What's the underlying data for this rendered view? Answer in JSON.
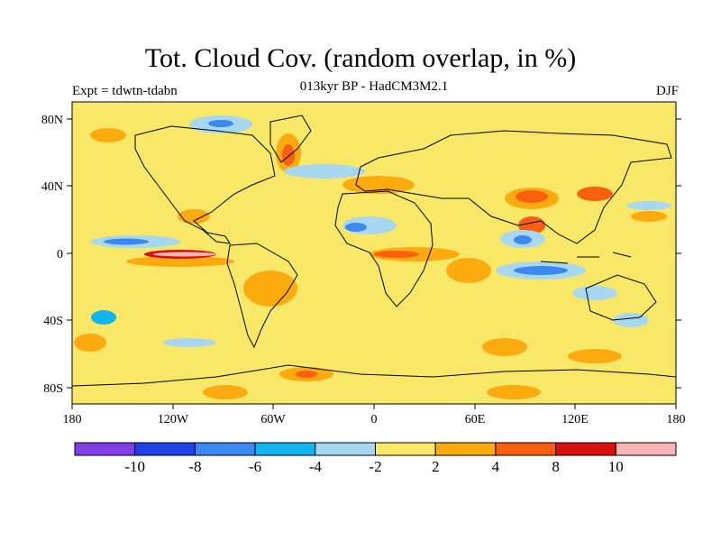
{
  "title": "Tot. Cloud Cov. (random overlap, in %)",
  "subtitle": "013kyr BP - HadCM3M2.1",
  "experiment": "Expt = tdwtn-tdabn",
  "season": "DJF",
  "map": {
    "lat_ticks": [
      "80N",
      "40N",
      "0",
      "40S",
      "80S"
    ],
    "lon_ticks": [
      "180",
      "120W",
      "60W",
      "0",
      "60E",
      "120E",
      "180"
    ],
    "background_color": "#f9e868"
  },
  "colorbar": {
    "colors": [
      "#7f3fe8",
      "#2040e8",
      "#3d88f0",
      "#10b4f0",
      "#a8d8f0",
      "#f9e868",
      "#fbab10",
      "#f96010",
      "#d81010",
      "#f9b4b4"
    ],
    "labels": [
      "-10",
      "-8",
      "-6",
      "-4",
      "-2",
      "2",
      "4",
      "8",
      "10"
    ]
  }
}
